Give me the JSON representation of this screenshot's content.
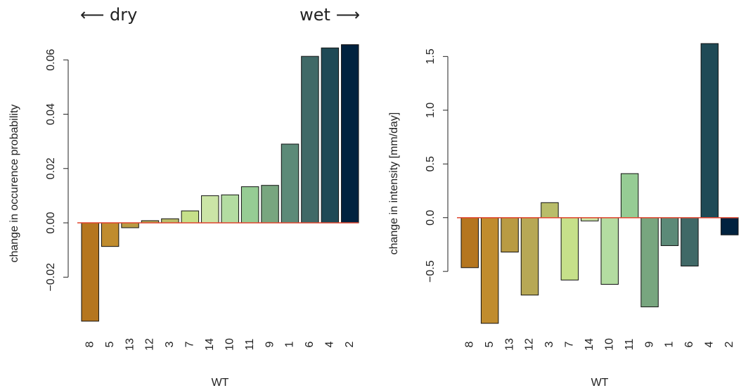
{
  "chart_data": [
    {
      "type": "bar",
      "annotations": [
        "⟵ dry",
        "wet ⟶"
      ],
      "x_label": "WT",
      "y_label": "change in occurence probability",
      "categories": [
        "8",
        "5",
        "13",
        "12",
        "3",
        "7",
        "14",
        "10",
        "11",
        "9",
        "1",
        "6",
        "4",
        "2"
      ],
      "values": [
        -0.0362,
        -0.0087,
        -0.0018,
        0.0008,
        0.0015,
        0.0044,
        0.01,
        0.0103,
        0.0133,
        0.0138,
        0.029,
        0.0613,
        0.0644,
        0.0656
      ],
      "colors": [
        "#b5761f",
        "#c08c2e",
        "#b99b43",
        "#b7a855",
        "#b9bd6a",
        "#c6e08a",
        "#cbe5a6",
        "#b3dca1",
        "#96cc94",
        "#78a67f",
        "#5c8a78",
        "#406967",
        "#1f4a56",
        "#00223f"
      ],
      "ylim": [
        -0.037,
        0.066
      ],
      "yticks": [
        {
          "value": -0.02,
          "label": "−0.02"
        },
        {
          "value": 0,
          "label": "0.00"
        },
        0.02,
        0.04,
        0.06
      ],
      "zero_line_color": "#e0452f"
    },
    {
      "type": "bar",
      "x_label": "WT",
      "y_label": "change in intensity [mm/day]",
      "categories": [
        "8",
        "5",
        "13",
        "12",
        "3",
        "7",
        "14",
        "10",
        "11",
        "9",
        "1",
        "6",
        "4",
        "2"
      ],
      "values": [
        -0.465,
        -0.983,
        -0.32,
        -0.72,
        0.14,
        -0.58,
        -0.03,
        -0.62,
        0.41,
        -0.83,
        -0.26,
        -0.45,
        1.62,
        -0.16
      ],
      "colors": [
        "#b5761f",
        "#c08c2e",
        "#b99b43",
        "#b7a855",
        "#b9bd6a",
        "#c6e08a",
        "#cbe5a6",
        "#b3dca1",
        "#96cc94",
        "#78a67f",
        "#5c8a78",
        "#406967",
        "#1f4a56",
        "#00223f"
      ],
      "ylim": [
        -0.983,
        1.62
      ],
      "yticks": [
        {
          "value": -0.5,
          "label": "−0.5"
        },
        {
          "value": 0,
          "label": "0.0"
        },
        0.5,
        {
          "value": 1,
          "label": "1.0"
        },
        1.5
      ],
      "zero_line_color": "#e0452f"
    }
  ]
}
